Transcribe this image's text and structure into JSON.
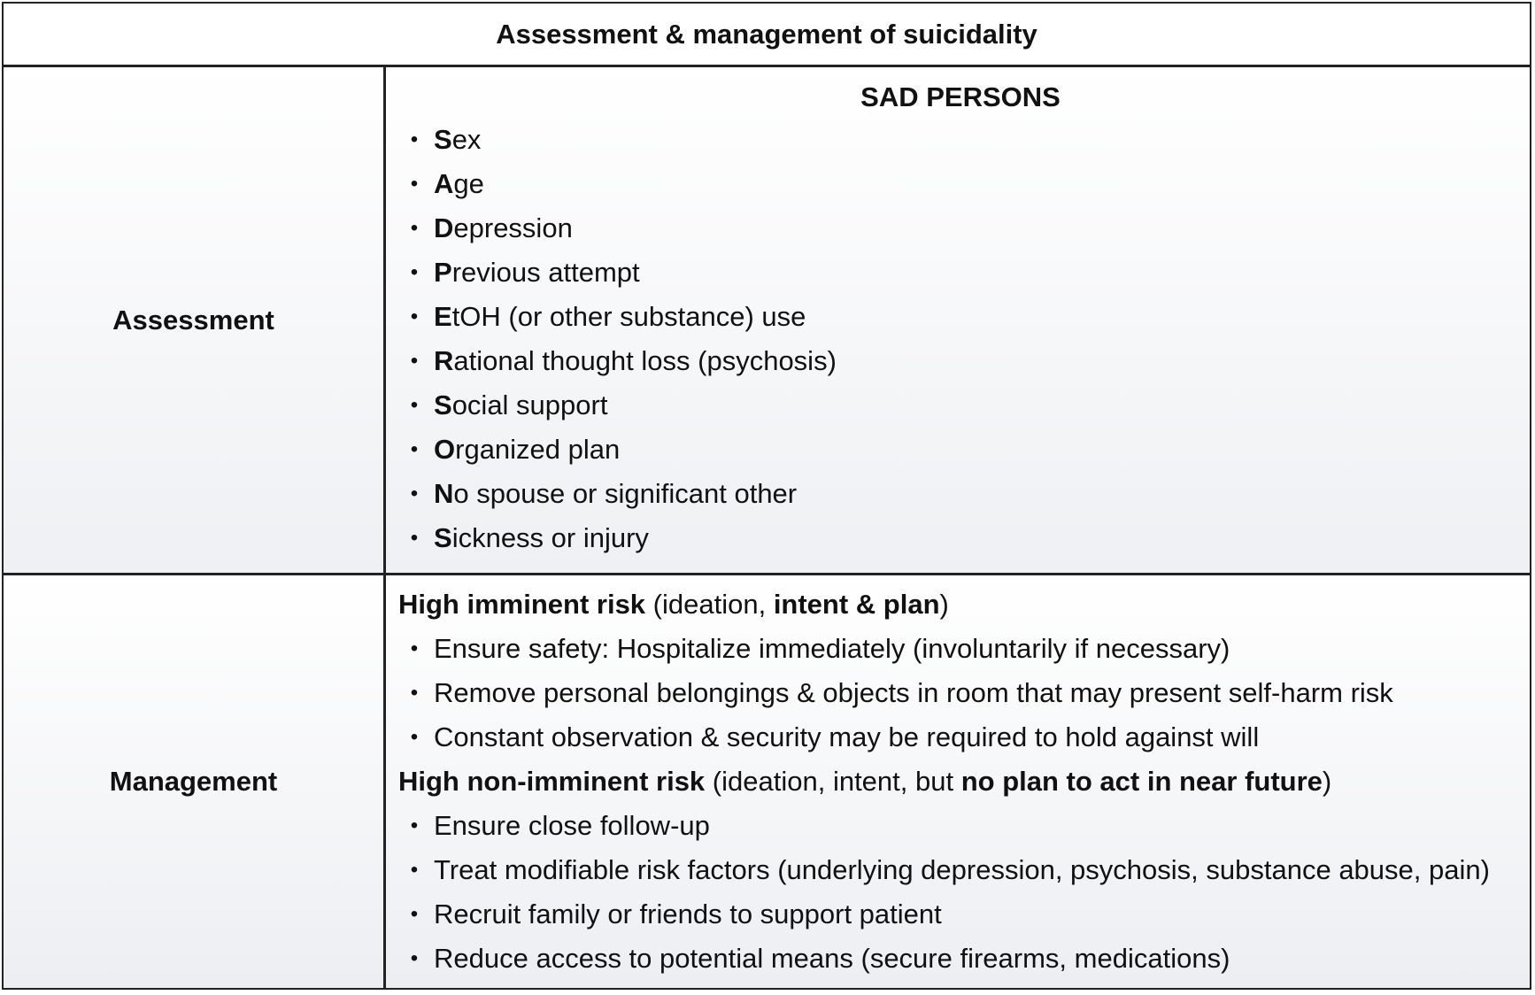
{
  "title": "Assessment & management of suicidality",
  "assessment": {
    "label": "Assessment",
    "heading": "SAD PERSONS",
    "items": [
      {
        "letter": "S",
        "rest": "ex"
      },
      {
        "letter": "A",
        "rest": "ge"
      },
      {
        "letter": "D",
        "rest": "epression"
      },
      {
        "letter": "P",
        "rest": "revious attempt"
      },
      {
        "letter": "E",
        "rest": "tOH (or other substance) use"
      },
      {
        "letter": "R",
        "rest": "ational thought loss (psychosis)"
      },
      {
        "letter": "S",
        "rest": "ocial support"
      },
      {
        "letter": "O",
        "rest": "rganized plan"
      },
      {
        "letter": "N",
        "rest": "o spouse or significant other"
      },
      {
        "letter": "S",
        "rest": "ickness or injury"
      }
    ]
  },
  "management": {
    "label": "Management",
    "high_imminent": {
      "bold": "High imminent risk",
      "paren_open": " (ideation, ",
      "paren_bold": "intent & plan",
      "paren_close": ")",
      "items": [
        "Ensure safety: Hospitalize immediately (involuntarily if necessary)",
        "Remove personal belongings & objects in room that may present self-harm risk",
        "Constant observation & security may be required to hold against will"
      ]
    },
    "high_non_imminent": {
      "bold": "High non-imminent risk",
      "paren_open": " (ideation, intent, but ",
      "paren_bold": "no plan to act in near future",
      "paren_close": ")",
      "items": [
        "Ensure close follow-up",
        "Treat modifiable risk factors (underlying depression, psychosis, substance abuse, pain)",
        "Recruit family or friends to support patient",
        "Reduce access to potential means (secure firearms, medications)"
      ]
    }
  }
}
